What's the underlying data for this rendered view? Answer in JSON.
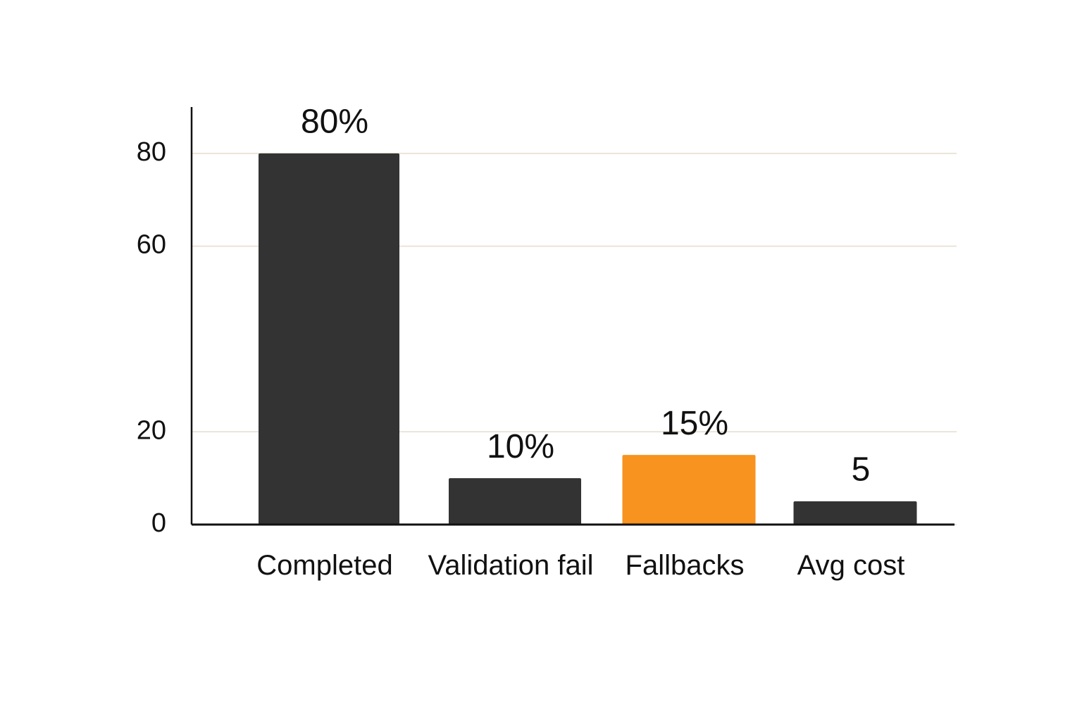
{
  "chart_data": {
    "type": "bar",
    "categories": [
      "Completed",
      "Validation fail",
      "Fallbacks",
      "Avg cost"
    ],
    "values": [
      80,
      10,
      15,
      5
    ],
    "value_labels": [
      "80%",
      "10%",
      "15%",
      "5"
    ],
    "colors": [
      "#333333",
      "#333333",
      "#f7931e",
      "#333333"
    ],
    "ylim": [
      0,
      90
    ],
    "yticks": [
      0,
      20,
      60,
      80
    ],
    "grid": true
  }
}
